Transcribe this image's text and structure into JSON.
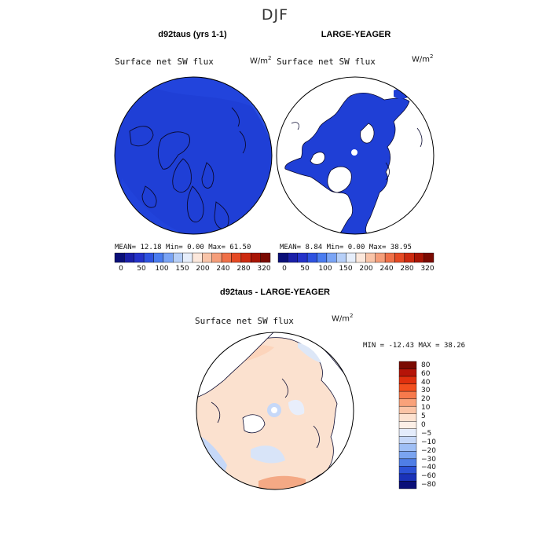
{
  "title": "DJF",
  "panel_left": {
    "title": "d92taus (yrs 1-1)",
    "variable": "Surface net SW flux",
    "units_base": "W/m",
    "units_exp": "2",
    "stats": "MEAN=  12.18  Min=   0.00  Max=  61.50"
  },
  "panel_right": {
    "title": "LARGE-YEAGER",
    "variable": "Surface net SW flux",
    "units_base": "W/m",
    "units_exp": "2",
    "stats": "MEAN=   8.84  Min=   0.00  Max=  38.95"
  },
  "panel_diff": {
    "title": "d92taus - LARGE-YEAGER",
    "variable": "Surface net SW flux",
    "units_base": "W/m",
    "units_exp": "2",
    "stats": "MIN = -12.43 MAX =  38.26"
  },
  "colorbar_abs": {
    "colors": [
      "#0a0f78",
      "#1a1fa8",
      "#2432c9",
      "#2e52e0",
      "#4a7cf0",
      "#7aa4f5",
      "#b6cff8",
      "#e6eefb",
      "#fce8dc",
      "#f9c4a8",
      "#f59e7a",
      "#ef7048",
      "#e54a24",
      "#cc2a10",
      "#a81505",
      "#7a0a02"
    ],
    "labels": [
      "0",
      "50",
      "100",
      "150",
      "200",
      "240",
      "280",
      "320"
    ]
  },
  "colorbar_diff": {
    "colors": [
      "#7a0a02",
      "#b51408",
      "#e0300e",
      "#f24f1e",
      "#f77a4c",
      "#f9a27a",
      "#fbc4a6",
      "#fde2d0",
      "#fcefe6",
      "#e4ecfb",
      "#c6d8f8",
      "#9fbff5",
      "#7aa4f0",
      "#4f7ee6",
      "#2c52d6",
      "#1a32b8",
      "#0a0f78"
    ],
    "labels": [
      "80",
      "60",
      "40",
      "30",
      "20",
      "10",
      "5",
      "0",
      "−5",
      "−10",
      "−20",
      "−30",
      "−40",
      "−60",
      "−80"
    ]
  }
}
